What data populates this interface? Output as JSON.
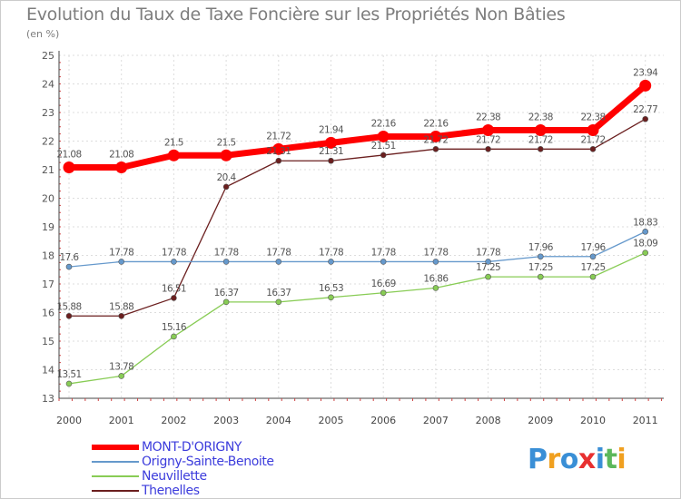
{
  "chart_data": {
    "type": "line",
    "title": "Evolution du Taux de Taxe Foncière sur les Propriétés Non Bâties",
    "unit_label": "(en %)",
    "xlabel": "",
    "ylabel": "",
    "ylim": [
      13,
      25
    ],
    "y_ticks": [
      "13",
      "14",
      "15",
      "16",
      "17",
      "18",
      "19",
      "20",
      "21",
      "22",
      "23",
      "24",
      "25"
    ],
    "categories": [
      "2000",
      "2001",
      "2002",
      "2003",
      "2004",
      "2005",
      "2006",
      "2007",
      "2008",
      "2009",
      "2010",
      "2011"
    ],
    "grid": true,
    "legend_position": "bottom-left",
    "series": [
      {
        "name": "Thenelles",
        "color": "#6b1f1f",
        "values": [
          15.88,
          15.88,
          16.51,
          20.4,
          21.31,
          21.31,
          21.51,
          21.72,
          21.72,
          21.72,
          21.72,
          22.77
        ],
        "value_labels": [
          "15.88",
          "15.88",
          "16.51",
          "20.4",
          "21.31",
          "21.31",
          "21.51",
          "21.72",
          "21.72",
          "21.72",
          "21.72",
          "22.77"
        ]
      },
      {
        "name": "Neuvillette",
        "color": "#88cc55",
        "values": [
          13.51,
          13.78,
          15.16,
          16.37,
          16.37,
          16.53,
          16.69,
          16.86,
          17.25,
          17.25,
          17.25,
          18.09
        ],
        "value_labels": [
          "13.51",
          "13.78",
          "15.16",
          "16.37",
          "16.37",
          "16.53",
          "16.69",
          "16.86",
          "17.25",
          "17.25",
          "17.25",
          "18.09"
        ]
      },
      {
        "name": "Origny-Sainte-Benoite",
        "color": "#6699cc",
        "values": [
          17.6,
          17.78,
          17.78,
          17.78,
          17.78,
          17.78,
          17.78,
          17.78,
          17.78,
          17.96,
          17.96,
          18.83
        ],
        "value_labels": [
          "17.6",
          "17.78",
          "17.78",
          "17.78",
          "17.78",
          "17.78",
          "17.78",
          "17.78",
          "17.78",
          "17.96",
          "17.96",
          "18.83"
        ]
      },
      {
        "name": "MONT-D'ORIGNY",
        "color": "#ff0000",
        "values": [
          21.08,
          21.08,
          21.5,
          21.5,
          21.72,
          21.94,
          22.16,
          22.16,
          22.38,
          22.38,
          22.38,
          23.94
        ],
        "value_labels": [
          "21.08",
          "21.08",
          "21.5",
          "21.5",
          "21.72",
          "21.94",
          "22.16",
          "22.16",
          "22.38",
          "22.38",
          "22.38",
          "23.94"
        ]
      }
    ]
  },
  "legend": {
    "items": [
      {
        "label": "MONT-D'ORIGNY",
        "color": "#ff0000"
      },
      {
        "label": "Origny-Sainte-Benoite",
        "color": "#6699cc"
      },
      {
        "label": "Neuvillette",
        "color": "#88cc55"
      },
      {
        "label": "Thenelles",
        "color": "#6b1f1f"
      }
    ]
  },
  "brand": {
    "letters": [
      "P",
      "r",
      "o",
      "x",
      "i",
      "t",
      "i"
    ],
    "colors": [
      "#3a8fd6",
      "#f0a020",
      "#3a8fd6",
      "#e83030",
      "#3a8fd6",
      "#5cb85c",
      "#f0a020"
    ]
  }
}
